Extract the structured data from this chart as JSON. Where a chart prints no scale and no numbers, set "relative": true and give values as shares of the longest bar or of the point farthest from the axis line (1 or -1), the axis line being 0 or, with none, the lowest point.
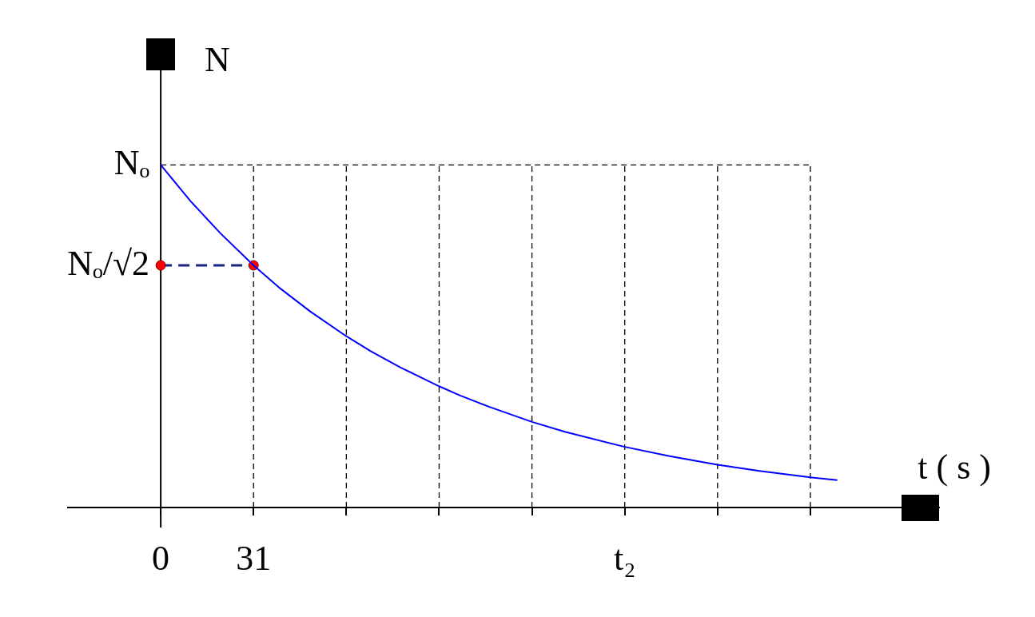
{
  "chart_data": {
    "type": "line",
    "xlabel": "t ( s )",
    "ylabel": "N",
    "relative": true,
    "xlim": [
      -31,
      260
    ],
    "xticks": [
      0,
      31,
      {
        "value": 62,
        "label": null
      },
      {
        "value": 93,
        "label": null
      },
      {
        "value": 124,
        "label": null
      },
      {
        "value": 155,
        "label": "t₂"
      },
      {
        "value": 186,
        "label": null
      },
      {
        "value": 217,
        "label": null
      }
    ],
    "annotations": [
      "Nₒ",
      "Nₒ/√2"
    ],
    "grid": true,
    "legend": false,
    "series": [
      {
        "type": "line",
        "color": "#0000ff",
        "marker": "none",
        "line_style": "solid",
        "x": [
          0,
          10,
          20,
          31,
          40,
          50,
          62,
          70,
          80,
          93,
          100,
          110,
          124,
          135,
          155,
          170,
          186,
          200,
          217,
          226
        ],
        "values": [
          1,
          0.894,
          0.8,
          0.707,
          0.639,
          0.572,
          0.5,
          0.457,
          0.409,
          0.354,
          0.327,
          0.293,
          0.25,
          0.221,
          0.177,
          0.15,
          0.125,
          0.107,
          0.088,
          0.08
        ]
      },
      {
        "type": "line",
        "color": "#1a237e",
        "colors": [
          "#ff0000",
          "#ff0000"
        ],
        "marker": "circle",
        "line_style": "dashed",
        "x": [
          0,
          31
        ],
        "values": [
          0.707,
          0.707
        ]
      }
    ]
  }
}
